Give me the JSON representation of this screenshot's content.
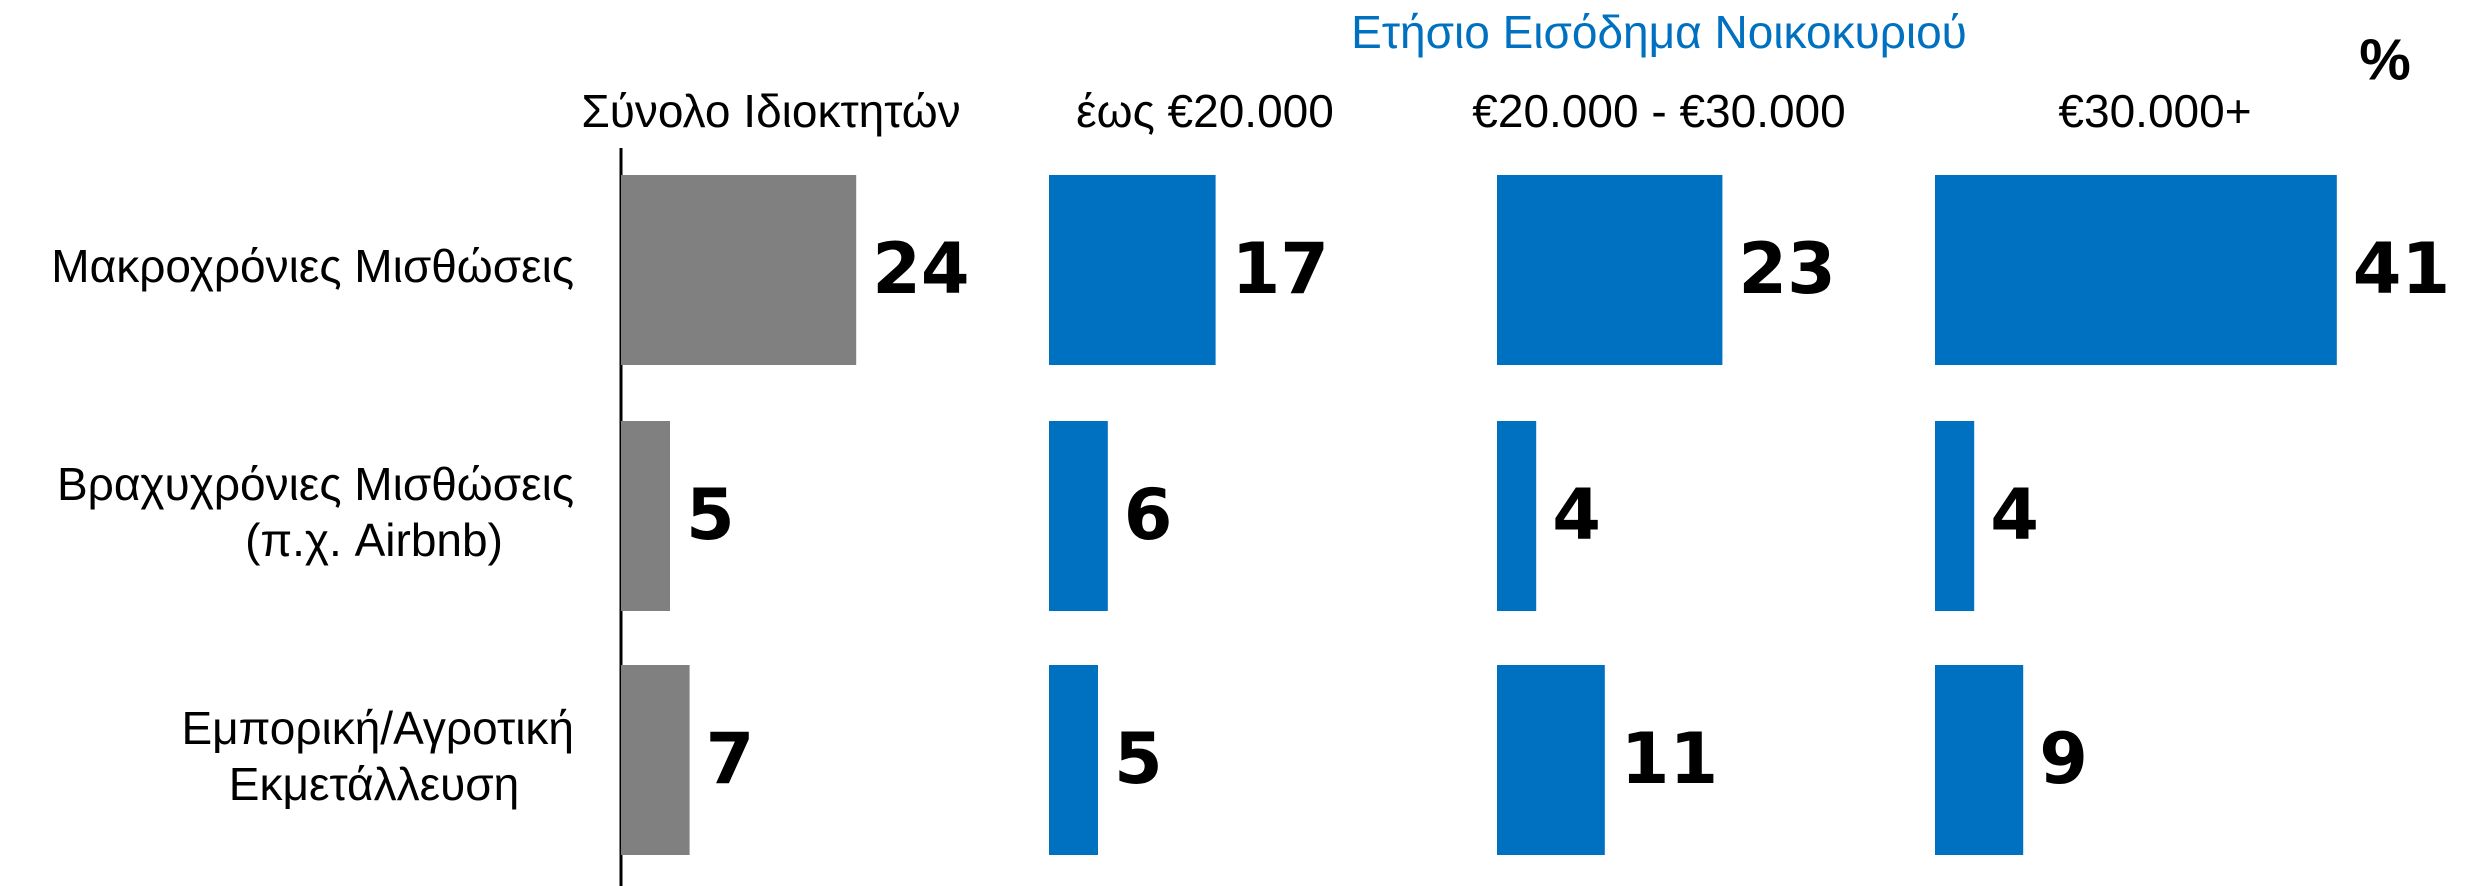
{
  "chart_data": {
    "type": "bar",
    "title": "Ετήσιο Εισόδημα Νοικοκυριού",
    "unit": "%",
    "categories": [
      "Μακροχρόνιες Μισθώσεις",
      "Βραχυχρόνιες Μισθώσεις\n(π.χ. Airbnb)",
      "Εμπορική/Αγροτική\nΕκμετάλλευση"
    ],
    "series": [
      {
        "name": "Σύνολο Ιδιοκτητών",
        "color": "#808080",
        "values": [
          24,
          5,
          7
        ]
      },
      {
        "name": "έως €20.000",
        "color": "#0070c0",
        "values": [
          17,
          6,
          5
        ]
      },
      {
        "name": "€20.000 - €30.000",
        "color": "#0070c0",
        "values": [
          23,
          4,
          11
        ]
      },
      {
        "name": "€30.000+",
        "color": "#0070c0",
        "values": [
          41,
          4,
          9
        ]
      }
    ]
  }
}
